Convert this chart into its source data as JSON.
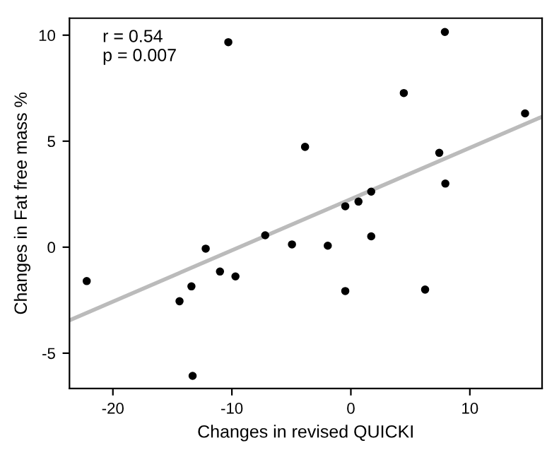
{
  "chart_data": {
    "type": "scatter",
    "xlabel": "Changes in revised QUICKI",
    "ylabel": "Changes in Fat free mass %",
    "annotations": [
      "r = 0.54\np = 0.007"
    ],
    "xlim": [
      -23.65,
      16.07
    ],
    "ylim": [
      -6.67,
      10.8
    ],
    "xticks": [
      -20,
      -10,
      0,
      10
    ],
    "yticks": [
      -5,
      0,
      5,
      10
    ],
    "grid": false,
    "series": [
      {
        "marker": "circle",
        "color": "#000000",
        "x": [
          -22.2,
          -14.4,
          -13.4,
          -12.2,
          -11.0,
          -9.7,
          -13.3,
          -7.2,
          -4.95,
          -1.94,
          -0.47,
          1.71,
          6.24,
          -3.85,
          -0.47,
          0.64,
          1.71,
          4.45,
          7.9,
          7.43,
          7.94,
          14.64,
          -10.3
        ],
        "values": [
          -1.6,
          -2.55,
          -1.85,
          -0.07,
          -1.15,
          -1.38,
          -6.07,
          0.56,
          0.13,
          0.07,
          -2.07,
          0.51,
          -2.0,
          4.73,
          1.93,
          2.15,
          2.62,
          7.27,
          10.15,
          4.45,
          3.0,
          6.31,
          9.67
        ]
      },
      {
        "type": "line",
        "color": "#bbbbbb",
        "x": [
          -23.65,
          16.07
        ],
        "values": [
          -3.45,
          6.15
        ]
      }
    ]
  }
}
